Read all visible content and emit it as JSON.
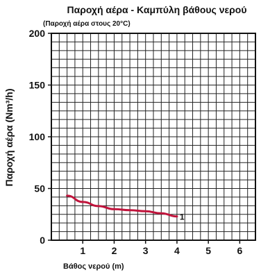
{
  "chart_data": {
    "type": "line",
    "title": "Παροχή αέρα - Καμπύλη βάθους νερού",
    "subtitle": "(Παροχή αέρα στους 20°C)",
    "xlabel": "Βάθος νερού (m)",
    "ylabel": "Παροχή αέρα (Nm³/h)",
    "xlim": [
      0,
      6.5
    ],
    "ylim": [
      0,
      200
    ],
    "x_ticks": [
      1,
      2,
      3,
      4,
      5,
      6
    ],
    "x_tick_labels": [
      "1",
      "2",
      "3",
      "4",
      "5",
      "6"
    ],
    "y_ticks": [
      0,
      50,
      100,
      150,
      200
    ],
    "y_tick_labels": [
      "0",
      "50",
      "100",
      "150",
      "200"
    ],
    "grid": true,
    "series": [
      {
        "name": "1",
        "color": "#c0143c",
        "x": [
          0.5,
          1.0,
          1.5,
          2.0,
          2.5,
          3.0,
          3.5,
          4.0
        ],
        "y": [
          43,
          37,
          33,
          30,
          29,
          28,
          26,
          23
        ]
      }
    ]
  }
}
